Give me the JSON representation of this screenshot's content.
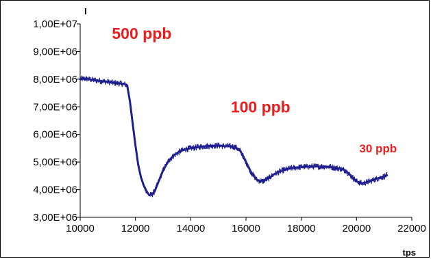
{
  "chart_data": {
    "type": "line",
    "xlabel": "tps",
    "ylabel": "I",
    "xlim": [
      10000,
      22000
    ],
    "ylim": [
      3000000,
      10000000
    ],
    "x_ticks": [
      10000,
      12000,
      14000,
      16000,
      18000,
      20000,
      22000
    ],
    "x_tick_labels": [
      "10000",
      "12000",
      "14000",
      "16000",
      "18000",
      "20000",
      "22000"
    ],
    "y_ticks": [
      3000000,
      4000000,
      5000000,
      6000000,
      7000000,
      8000000,
      9000000,
      10000000
    ],
    "y_tick_labels": [
      "3,00E+06",
      "4,00E+06",
      "5,00E+06",
      "6,00E+06",
      "7,00E+06",
      "8,00E+06",
      "9,00E+06",
      "1,00E+07"
    ],
    "grid": false,
    "series": [
      {
        "color": "#1f1f8f",
        "x": [
          10000,
          10200,
          10400,
          10600,
          10800,
          11000,
          11200,
          11400,
          11600,
          11700,
          11800,
          11900,
          12000,
          12100,
          12200,
          12300,
          12400,
          12500,
          12600,
          12700,
          12800,
          13000,
          13200,
          13400,
          13600,
          13800,
          14000,
          14200,
          14400,
          14600,
          14800,
          15000,
          15200,
          15400,
          15600,
          15800,
          16000,
          16200,
          16400,
          16600,
          16800,
          17000,
          17200,
          17400,
          17600,
          17800,
          18000,
          18200,
          18400,
          18600,
          18800,
          19000,
          19200,
          19400,
          19600,
          19800,
          20000,
          20200,
          20400,
          20600,
          20800,
          21000,
          21100
        ],
        "y": [
          8000000,
          8020000,
          7980000,
          7950000,
          7930000,
          7900000,
          7870000,
          7850000,
          7820000,
          7780000,
          7200000,
          6400000,
          5600000,
          4900000,
          4450000,
          4150000,
          3950000,
          3800000,
          3820000,
          3950000,
          4200000,
          4700000,
          5050000,
          5250000,
          5380000,
          5460000,
          5500000,
          5530000,
          5560000,
          5580000,
          5590000,
          5600000,
          5580000,
          5570000,
          5550000,
          5400000,
          5000000,
          4600000,
          4350000,
          4300000,
          4400000,
          4550000,
          4650000,
          4720000,
          4770000,
          4800000,
          4820000,
          4830000,
          4840000,
          4840000,
          4840000,
          4830000,
          4800000,
          4760000,
          4700000,
          4500000,
          4300000,
          4220000,
          4280000,
          4350000,
          4420000,
          4480000,
          4520000
        ]
      }
    ],
    "annotations": [
      {
        "text": "500 ppb",
        "x": 11150,
        "y": 9450000,
        "size": 23
      },
      {
        "text": "100 ppb",
        "x": 15450,
        "y": 6800000,
        "size": 23
      },
      {
        "text": "30 ppb",
        "x": 20100,
        "y": 5350000,
        "size": 17
      }
    ]
  }
}
